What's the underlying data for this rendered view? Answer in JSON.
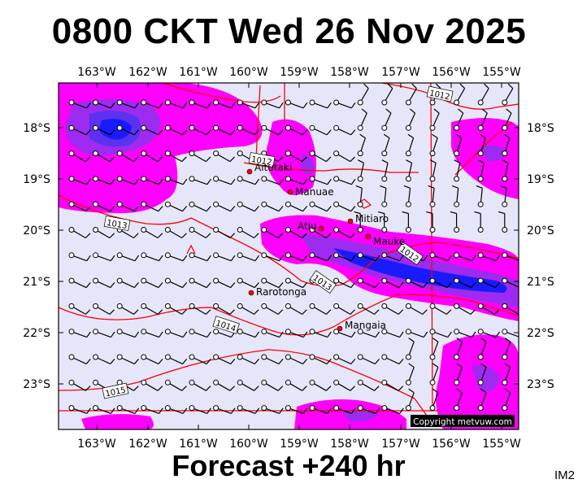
{
  "title": "0800 CKT Wed 26 Nov 2025",
  "footer": "Forecast +240 hr",
  "model_tag": "IM2",
  "copyright": "Copyright metvuw.com",
  "colors": {
    "ocean": "#e6e6fa",
    "rain_light": "#ff00ff",
    "rain_mid": "#9d2bf0",
    "rain_heavy": "#1a1aff",
    "isobar": "#ff0000",
    "frame": "#000000"
  },
  "map": {
    "lon_ticks": [
      "163°W",
      "162°W",
      "161°W",
      "160°W",
      "159°W",
      "158°W",
      "157°W",
      "156°W",
      "155°W"
    ],
    "lat_ticks": [
      "18°S",
      "19°S",
      "20°S",
      "21°S",
      "22°S",
      "23°S"
    ],
    "isobar_labels": [
      "1012",
      "1012",
      "1013",
      "1013",
      "1012",
      "1014",
      "1015"
    ],
    "places": [
      {
        "name": "Aitutaki"
      },
      {
        "name": "Manuae"
      },
      {
        "name": "Mitiaro"
      },
      {
        "name": "Atiu"
      },
      {
        "name": "Mauke"
      },
      {
        "name": "Rarotonga"
      },
      {
        "name": "Mangaia"
      }
    ]
  }
}
